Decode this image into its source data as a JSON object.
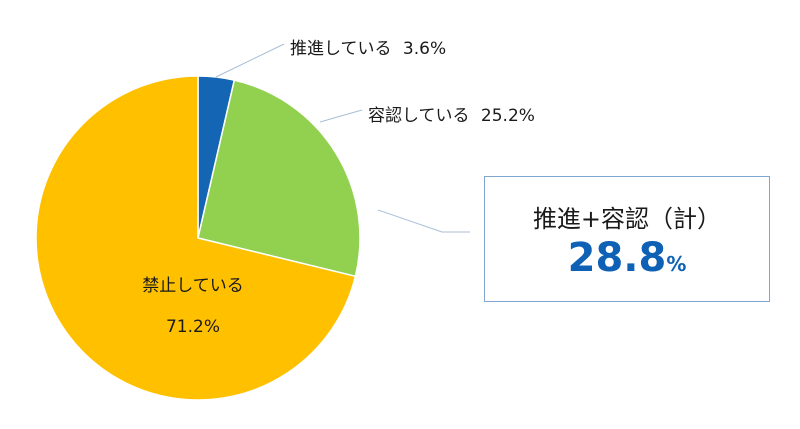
{
  "chart_data": {
    "type": "pie",
    "slices": [
      {
        "label": "推進している",
        "value": 3.6,
        "value_label": "3.6%",
        "color": "#1565b5"
      },
      {
        "label": "容認している",
        "value": 25.2,
        "value_label": "25.2%",
        "color": "#92d050"
      },
      {
        "label": "禁止している",
        "value": 71.2,
        "value_label": "71.2%",
        "color": "#ffc000"
      }
    ],
    "start": "12 o'clock",
    "direction": "clockwise"
  },
  "summary": {
    "title": "推進+容認（計）",
    "value": "28.8",
    "unit": "%"
  }
}
